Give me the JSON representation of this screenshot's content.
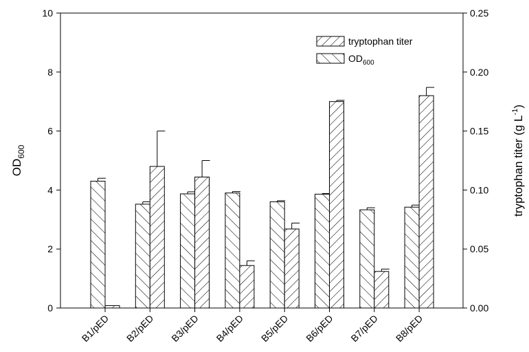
{
  "chart_data": {
    "type": "bar",
    "categories": [
      "B1/pED",
      "B2/pED",
      "B3/pED",
      "B4/pED",
      "B5/pED",
      "B6/pED",
      "B7/pED",
      "B8/pED"
    ],
    "series": [
      {
        "name": "OD600",
        "axis": "left",
        "pattern": "back-diagonal-hatch",
        "values": [
          4.3,
          3.52,
          3.87,
          3.9,
          3.6,
          3.86,
          3.33,
          3.42
        ],
        "errors": [
          0.1,
          0.08,
          0.07,
          0.05,
          0.04,
          0.02,
          0.07,
          0.07
        ]
      },
      {
        "name": "tryptophan titer",
        "axis": "right",
        "pattern": "forward-diagonal-hatch",
        "values": [
          0.002,
          0.12,
          0.111,
          0.036,
          0.067,
          0.175,
          0.031,
          0.18
        ],
        "errors": [
          0.0,
          0.03,
          0.014,
          0.004,
          0.005,
          0.001,
          0.002,
          0.007
        ]
      }
    ],
    "y_left": {
      "label_main": "OD",
      "label_sub": "600",
      "ylim": [
        0,
        10
      ],
      "ticks": [
        "0",
        "2",
        "4",
        "6",
        "8",
        "10"
      ]
    },
    "y_right": {
      "label_main": "tryptophan titer (g L",
      "label_sup": "-1",
      "label_end": ")",
      "ylim": [
        0,
        0.25
      ],
      "ticks": [
        "0.00",
        "0.05",
        "0.10",
        "0.15",
        "0.20",
        "0.25"
      ]
    },
    "legend": {
      "placement": "top-right-inside",
      "items": [
        {
          "label": "tryptophan titer",
          "pattern": "forward-diagonal-hatch"
        },
        {
          "label_main": "OD",
          "label_sub": "600",
          "pattern": "back-diagonal-hatch"
        }
      ]
    },
    "grid": false
  }
}
